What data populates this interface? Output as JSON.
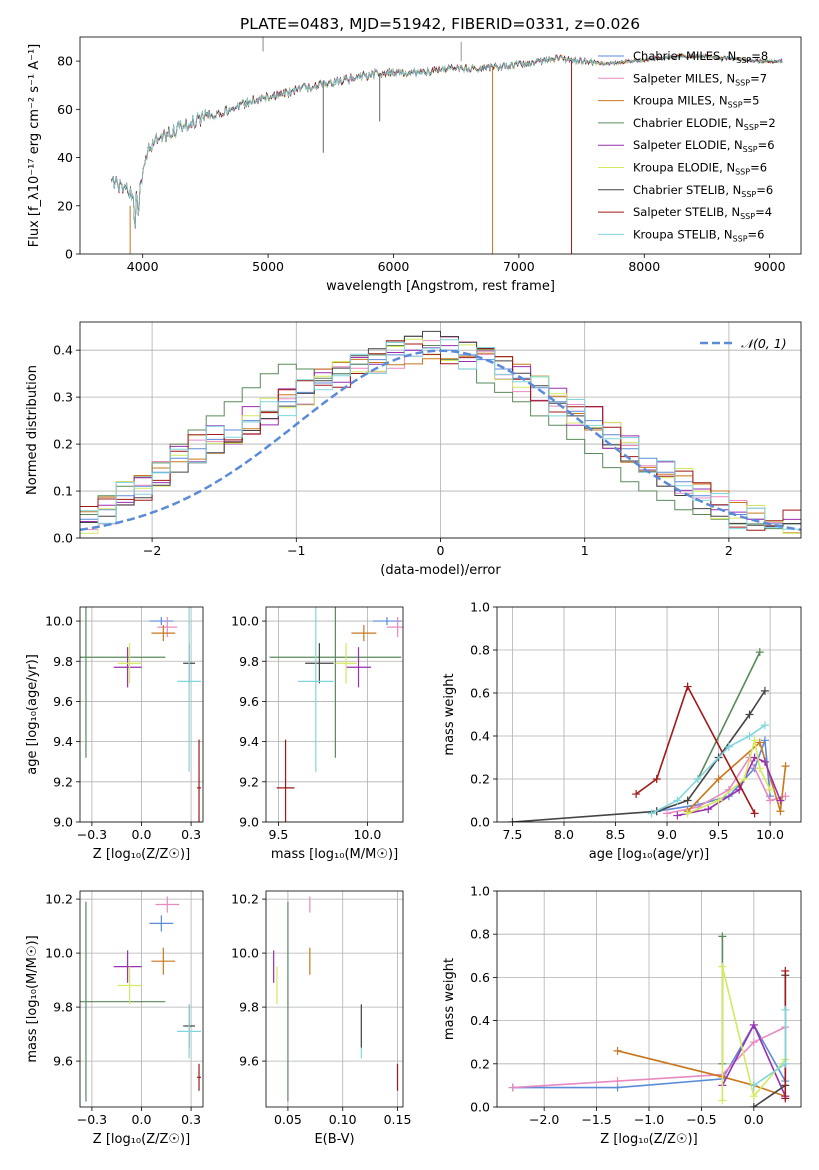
{
  "figure": {
    "title": "PLATE=0483, MJD=51942, FIBERID=0331, z=0.026"
  },
  "colors": {
    "Chabrier MILES": "#5b8bd8",
    "Salpeter MILES": "#e88ac0",
    "Kroupa MILES": "#c8771c",
    "Chabrier ELODIE": "#5a8a5a",
    "Salpeter ELODIE": "#9a2fb0",
    "Kroupa ELODIE": "#d4e860",
    "Chabrier STELIB": "#444444",
    "Salpeter STELIB": "#a01818",
    "Kroupa STELIB": "#7fd6dc",
    "normal": "#5b8bd8"
  },
  "chart_data": [
    {
      "type": "line",
      "xlabel": "wavelength [Angstrom, rest frame]",
      "ylabel": "Flux [f_λ10⁻¹⁷ erg cm⁻² s⁻¹ A⁻¹]",
      "xlim": [
        3500,
        9250
      ],
      "ylim": [
        0,
        90
      ],
      "xticks": [
        4000,
        5000,
        6000,
        7000,
        8000,
        9000
      ],
      "yticks": [
        0,
        20,
        40,
        60,
        80
      ],
      "grid": false,
      "legend_position": "top-right",
      "legend": [
        {
          "label": "Chabrier MILES, N_SSP=8",
          "model": "Chabrier MILES"
        },
        {
          "label": "Salpeter MILES, N_SSP=7",
          "model": "Salpeter MILES"
        },
        {
          "label": "Kroupa MILES, N_SSP=5",
          "model": "Kroupa MILES"
        },
        {
          "label": "Chabrier ELODIE, N_SSP=2",
          "model": "Chabrier ELODIE"
        },
        {
          "label": "Salpeter ELODIE, N_SSP=6",
          "model": "Salpeter ELODIE"
        },
        {
          "label": "Kroupa ELODIE, N_SSP=6",
          "model": "Kroupa ELODIE"
        },
        {
          "label": "Chabrier STELIB, N_SSP=6",
          "model": "Chabrier STELIB"
        },
        {
          "label": "Salpeter STELIB, N_SSP=4",
          "model": "Salpeter STELIB"
        },
        {
          "label": "Kroupa STELIB, N_SSP=6",
          "model": "Kroupa STELIB"
        }
      ],
      "continuum": {
        "x": [
          3750,
          3850,
          3950,
          4050,
          4150,
          4300,
          4500,
          4700,
          4900,
          5100,
          5300,
          5500,
          5700,
          5900,
          6100,
          6300,
          6500,
          6700,
          6900,
          7100,
          7300,
          7500,
          7700,
          7900,
          8100,
          8300,
          8500,
          8700,
          8900,
          9100
        ],
        "y": [
          30,
          27,
          24,
          43,
          49,
          52,
          57,
          60,
          64,
          66,
          69,
          71,
          73,
          75,
          75,
          76,
          77,
          77,
          78,
          79,
          81,
          80,
          79,
          80,
          81,
          82,
          82,
          81,
          80,
          80
        ]
      }
    },
    {
      "type": "step",
      "xlabel": "(data-model)/error",
      "ylabel": "Normed distribution",
      "xlim": [
        -2.5,
        2.5
      ],
      "ylim": [
        0,
        0.46
      ],
      "xticks": [
        -2,
        -1,
        0,
        1,
        2
      ],
      "yticks": [
        0.0,
        0.1,
        0.2,
        0.3,
        0.4
      ],
      "grid": true,
      "legend_position": "top-right",
      "legend": [
        {
          "label": "𝒩(0, 1)",
          "style": "dashed"
        }
      ],
      "series": [
        {
          "model": "Chabrier MILES",
          "values": [
            0.04,
            0.06,
            0.09,
            0.11,
            0.14,
            0.17,
            0.19,
            0.21,
            0.23,
            0.25,
            0.27,
            0.29,
            0.31,
            0.33,
            0.35,
            0.37,
            0.38,
            0.39,
            0.4,
            0.41,
            0.4,
            0.39,
            0.38,
            0.36,
            0.34,
            0.32,
            0.29,
            0.27,
            0.25,
            0.22,
            0.19,
            0.17,
            0.14,
            0.12,
            0.09,
            0.07,
            0.05,
            0.04,
            0.03,
            0.03
          ]
        },
        {
          "model": "Chabrier ELODIE",
          "values": [
            0.05,
            0.09,
            0.11,
            0.13,
            0.16,
            0.2,
            0.23,
            0.26,
            0.29,
            0.32,
            0.35,
            0.37,
            0.36,
            0.34,
            0.35,
            0.37,
            0.39,
            0.41,
            0.43,
            0.41,
            0.38,
            0.36,
            0.33,
            0.31,
            0.29,
            0.26,
            0.24,
            0.21,
            0.18,
            0.15,
            0.12,
            0.1,
            0.08,
            0.06,
            0.05,
            0.04,
            0.03,
            0.03,
            0.02,
            0.03
          ]
        }
      ],
      "normal_curve": {
        "mu": 0,
        "sigma": 1
      }
    },
    {
      "type": "scatter",
      "xlabel": "Z [log₁₀(Z/Z☉)]",
      "ylabel": "age  [log₁₀(age/yr)]",
      "xlim": [
        -0.31,
        0.31
      ],
      "ylim": [
        9.0,
        10.07
      ],
      "xticks": [
        -0.25,
        0.0,
        0.25
      ],
      "yticks": [
        9.0,
        9.2,
        9.4,
        9.6,
        9.8,
        10.0
      ],
      "grid": true,
      "points": [
        {
          "model": "Chabrier MILES",
          "x": 0.1,
          "y": 10.0,
          "xerr": 0.06,
          "yerr": 0.02
        },
        {
          "model": "Salpeter MILES",
          "x": 0.13,
          "y": 9.97,
          "xerr": 0.05,
          "yerr": 0.05
        },
        {
          "model": "Kroupa MILES",
          "x": 0.11,
          "y": 9.94,
          "xerr": 0.06,
          "yerr": 0.04
        },
        {
          "model": "Chabrier ELODIE",
          "x": -0.28,
          "y": 9.82,
          "xerr": 0.4,
          "yerr": 0.5
        },
        {
          "model": "Salpeter ELODIE",
          "x": -0.07,
          "y": 9.77,
          "xerr": 0.07,
          "yerr": 0.1
        },
        {
          "model": "Kroupa ELODIE",
          "x": -0.06,
          "y": 9.79,
          "xerr": 0.06,
          "yerr": 0.1
        },
        {
          "model": "Chabrier STELIB",
          "x": 0.24,
          "y": 9.79,
          "xerr": 0.03,
          "yerr": 0.1
        },
        {
          "model": "Salpeter STELIB",
          "x": 0.29,
          "y": 9.17,
          "xerr": 0.01,
          "yerr": 0.24
        },
        {
          "model": "Kroupa STELIB",
          "x": 0.24,
          "y": 9.7,
          "xerr": 0.06,
          "yerr": 0.45
        }
      ]
    },
    {
      "type": "scatter",
      "xlabel": "mass [log₁₀(M/M☉)]",
      "ylabel": "",
      "xlim": [
        9.43,
        10.2
      ],
      "ylim": [
        9.0,
        10.07
      ],
      "xticks": [
        9.5,
        10.0
      ],
      "yticks": [
        9.0,
        9.2,
        9.4,
        9.6,
        9.8,
        10.0
      ],
      "grid": true,
      "points": [
        {
          "model": "Chabrier MILES",
          "x": 10.11,
          "y": 10.0,
          "xerr": 0.08,
          "yerr": 0.02
        },
        {
          "model": "Salpeter MILES",
          "x": 10.17,
          "y": 9.97,
          "xerr": 0.06,
          "yerr": 0.05
        },
        {
          "model": "Kroupa MILES",
          "x": 9.98,
          "y": 9.94,
          "xerr": 0.07,
          "yerr": 0.04
        },
        {
          "model": "Chabrier ELODIE",
          "x": 9.82,
          "y": 9.82,
          "xerr": 0.37,
          "yerr": 0.5
        },
        {
          "model": "Salpeter ELODIE",
          "x": 9.95,
          "y": 9.77,
          "xerr": 0.07,
          "yerr": 0.1
        },
        {
          "model": "Kroupa ELODIE",
          "x": 9.88,
          "y": 9.79,
          "xerr": 0.06,
          "yerr": 0.1
        },
        {
          "model": "Chabrier STELIB",
          "x": 9.73,
          "y": 9.79,
          "xerr": 0.08,
          "yerr": 0.1
        },
        {
          "model": "Salpeter STELIB",
          "x": 9.54,
          "y": 9.17,
          "xerr": 0.05,
          "yerr": 0.24
        },
        {
          "model": "Kroupa STELIB",
          "x": 9.71,
          "y": 9.7,
          "xerr": 0.1,
          "yerr": 0.45
        }
      ]
    },
    {
      "type": "line",
      "xlabel": "age  [log₁₀(age/yr)]",
      "ylabel": "mass weight",
      "xlim": [
        7.35,
        10.3
      ],
      "ylim": [
        0.0,
        1.0
      ],
      "xticks": [
        7.5,
        8.0,
        8.5,
        9.0,
        9.5,
        10.0
      ],
      "yticks": [
        0.0,
        0.2,
        0.4,
        0.6,
        0.8,
        1.0
      ],
      "grid": true,
      "series": [
        {
          "model": "Chabrier MILES",
          "x": [
            8.9,
            9.3,
            9.6,
            9.85,
            9.95,
            10.0
          ],
          "y": [
            0.05,
            0.08,
            0.12,
            0.25,
            0.38,
            0.12
          ]
        },
        {
          "model": "Salpeter MILES",
          "x": [
            9.0,
            9.3,
            9.6,
            9.8,
            10.0,
            10.15
          ],
          "y": [
            0.04,
            0.07,
            0.15,
            0.3,
            0.1,
            0.12
          ]
        },
        {
          "model": "Kroupa MILES",
          "x": [
            9.2,
            9.5,
            9.9,
            10.1,
            10.15
          ],
          "y": [
            0.05,
            0.2,
            0.37,
            0.05,
            0.26
          ]
        },
        {
          "model": "Chabrier ELODIE",
          "x": [
            9.3,
            9.9
          ],
          "y": [
            0.2,
            0.79
          ]
        },
        {
          "model": "Salpeter ELODIE",
          "x": [
            9.1,
            9.4,
            9.7,
            9.85,
            9.95,
            10.1
          ],
          "y": [
            0.03,
            0.06,
            0.15,
            0.3,
            0.28,
            0.1
          ]
        },
        {
          "model": "Kroupa ELODIE",
          "x": [
            9.2,
            9.5,
            9.75,
            9.85,
            9.9,
            10.0
          ],
          "y": [
            0.04,
            0.1,
            0.2,
            0.38,
            0.25,
            0.15
          ]
        },
        {
          "model": "Chabrier STELIB",
          "x": [
            7.5,
            8.9,
            9.2,
            9.5,
            9.8,
            9.95
          ],
          "y": [
            0.0,
            0.05,
            0.1,
            0.3,
            0.5,
            0.61
          ]
        },
        {
          "model": "Salpeter STELIB",
          "x": [
            8.7,
            8.9,
            9.2,
            9.85
          ],
          "y": [
            0.13,
            0.2,
            0.63,
            0.04
          ]
        },
        {
          "model": "Kroupa STELIB",
          "x": [
            8.85,
            9.1,
            9.3,
            9.6,
            9.8,
            9.95
          ],
          "y": [
            0.04,
            0.1,
            0.2,
            0.35,
            0.4,
            0.45
          ]
        }
      ]
    },
    {
      "type": "scatter",
      "xlabel": "Z [log₁₀(Z/Z☉)]",
      "ylabel": "mass [log₁₀(M/M☉)]",
      "xlim": [
        -0.31,
        0.31
      ],
      "ylim": [
        9.43,
        10.23
      ],
      "xticks": [
        -0.25,
        0.0,
        0.25
      ],
      "yticks": [
        9.6,
        9.8,
        10.0,
        10.2
      ],
      "grid": true,
      "points": [
        {
          "model": "Chabrier MILES",
          "x": 0.1,
          "y": 10.11,
          "xerr": 0.06,
          "yerr": 0.03
        },
        {
          "model": "Salpeter MILES",
          "x": 0.13,
          "y": 10.18,
          "xerr": 0.06,
          "yerr": 0.03
        },
        {
          "model": "Kroupa MILES",
          "x": 0.11,
          "y": 9.97,
          "xerr": 0.06,
          "yerr": 0.05
        },
        {
          "model": "Chabrier ELODIE",
          "x": -0.28,
          "y": 9.82,
          "xerr": 0.4,
          "yerr": 0.37
        },
        {
          "model": "Salpeter ELODIE",
          "x": -0.07,
          "y": 9.95,
          "xerr": 0.07,
          "yerr": 0.06
        },
        {
          "model": "Kroupa ELODIE",
          "x": -0.06,
          "y": 9.88,
          "xerr": 0.06,
          "yerr": 0.07
        },
        {
          "model": "Chabrier STELIB",
          "x": 0.24,
          "y": 9.73,
          "xerr": 0.03,
          "yerr": 0.08
        },
        {
          "model": "Salpeter STELIB",
          "x": 0.29,
          "y": 9.54,
          "xerr": 0.01,
          "yerr": 0.05
        },
        {
          "model": "Kroupa STELIB",
          "x": 0.24,
          "y": 9.71,
          "xerr": 0.06,
          "yerr": 0.1
        }
      ]
    },
    {
      "type": "scatter",
      "xlabel": "E(B-V)",
      "ylabel": "",
      "xlim": [
        0.03,
        0.155
      ],
      "ylim": [
        9.43,
        10.23
      ],
      "xticks": [
        0.05,
        0.1,
        0.15
      ],
      "yticks": [
        9.6,
        9.8,
        10.0,
        10.2
      ],
      "grid": true,
      "points": [
        {
          "model": "Salpeter MILES",
          "x": 0.07,
          "y": 10.18,
          "yerr": 0.03
        },
        {
          "model": "Kroupa MILES",
          "x": 0.07,
          "y": 9.97,
          "yerr": 0.05
        },
        {
          "model": "Salpeter ELODIE",
          "x": 0.037,
          "y": 9.95,
          "yerr": 0.06
        },
        {
          "model": "Kroupa ELODIE",
          "x": 0.04,
          "y": 9.88,
          "yerr": 0.07
        },
        {
          "model": "Chabrier ELODIE",
          "x": 0.05,
          "y": 9.82,
          "yerr": 0.37
        },
        {
          "model": "Kroupa STELIB",
          "x": 0.117,
          "y": 9.71,
          "yerr": 0.1
        },
        {
          "model": "Chabrier STELIB",
          "x": 0.117,
          "y": 9.73,
          "yerr": 0.08
        },
        {
          "model": "Salpeter STELIB",
          "x": 0.15,
          "y": 9.54,
          "yerr": 0.05
        }
      ]
    },
    {
      "type": "line",
      "xlabel": "Z [log₁₀(Z/Z☉)]",
      "ylabel": "mass weight",
      "xlim": [
        -2.45,
        0.45
      ],
      "ylim": [
        0.0,
        1.0
      ],
      "xticks": [
        -2.0,
        -1.5,
        -1.0,
        -0.5,
        0.0
      ],
      "yticks": [
        0.0,
        0.2,
        0.4,
        0.6,
        0.8,
        1.0
      ],
      "grid": true,
      "series": [
        {
          "model": "Chabrier MILES",
          "x": [
            -2.3,
            -1.3,
            -0.3,
            0.0,
            0.3
          ],
          "y": [
            0.09,
            0.09,
            0.13,
            0.38,
            0.12
          ]
        },
        {
          "model": "Salpeter MILES",
          "x": [
            -2.3,
            -1.3,
            -0.3,
            0.0,
            0.3
          ],
          "y": [
            0.09,
            0.12,
            0.15,
            0.3,
            0.37
          ]
        },
        {
          "model": "Kroupa MILES",
          "x": [
            -1.3,
            -0.3,
            0.0,
            0.3
          ],
          "y": [
            0.26,
            0.14,
            0.1,
            0.05
          ]
        },
        {
          "model": "Chabrier ELODIE",
          "x": [
            -0.3,
            -0.3
          ],
          "y": [
            0.2,
            0.79
          ]
        },
        {
          "model": "Salpeter ELODIE",
          "x": [
            -0.3,
            0.0,
            0.3
          ],
          "y": [
            0.1,
            0.38,
            0.05
          ]
        },
        {
          "model": "Kroupa ELODIE",
          "x": [
            -0.3,
            -0.3,
            0.0,
            0.3
          ],
          "y": [
            0.03,
            0.65,
            0.05,
            0.22
          ]
        },
        {
          "model": "Chabrier STELIB",
          "x": [
            0.0,
            0.3,
            0.3
          ],
          "y": [
            0.0,
            0.1,
            0.61
          ]
        },
        {
          "model": "Salpeter STELIB",
          "x": [
            0.3,
            0.3
          ],
          "y": [
            0.04,
            0.63
          ]
        },
        {
          "model": "Kroupa STELIB",
          "x": [
            0.0,
            0.3,
            0.3
          ],
          "y": [
            0.1,
            0.2,
            0.45
          ]
        }
      ]
    }
  ]
}
